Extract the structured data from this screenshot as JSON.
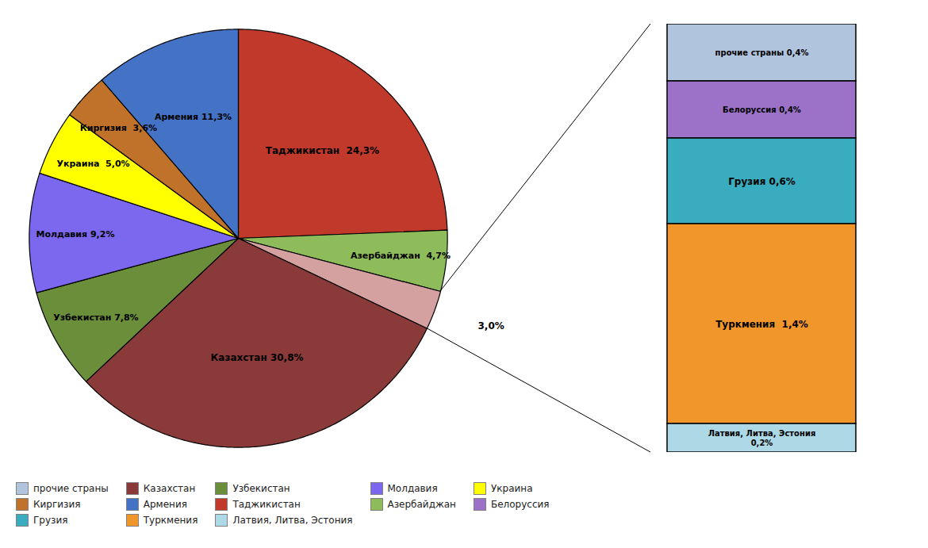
{
  "chart_data": [
    {
      "type": "pie",
      "categories": [
        "Таджикистан",
        "Азербайджан",
        null,
        "Казахстан",
        "Узбекистан",
        "Молдавия",
        "Украина",
        "Киргизия",
        "Армения"
      ],
      "values": [
        24.3,
        4.7,
        3.0,
        30.8,
        7.8,
        9.2,
        5.0,
        3.6,
        11.3
      ],
      "value_labels": [
        "Таджикистан  24,3%",
        "Азербайджан  4,7%",
        "3,0%",
        "Казахстан 30,8%",
        "Узбекистан 7,8%",
        "Молдавия 9,2%",
        "Украина  5,0%",
        "Киргизия  3,6%",
        "Армения 11,3%"
      ],
      "colors": [
        "#C0392B",
        "#8FBC5A",
        "#D4A0A0",
        "#8B3A3A",
        "#6B8E3A",
        "#7B68EE",
        "#FFFF00",
        "#C0722A",
        "#4472C4"
      ],
      "data_labels": true,
      "legend": "lower left"
    },
    {
      "type": "bar",
      "stacked": true,
      "tick_labels": false,
      "data_labels": true,
      "categories": [
        null
      ],
      "ylim": [
        0,
        3.0
      ],
      "series": [
        {
          "name": "прочие страны",
          "color": "#B0C4DE",
          "values": [
            0.4
          ],
          "value_labels": [
            "прочие страны 0,4%"
          ]
        },
        {
          "name": "Белоруссия",
          "color": "#9B72C8",
          "values": [
            0.4
          ],
          "value_labels": [
            "Белоруссия 0,4%"
          ]
        },
        {
          "name": "Грузия",
          "color": "#3AACBF",
          "values": [
            0.6
          ],
          "value_labels": [
            "Грузия 0,6%"
          ]
        },
        {
          "name": "Туркмения",
          "color": "#F0962A",
          "values": [
            1.4
          ],
          "value_labels": [
            "Туркмения  1,4%"
          ]
        },
        {
          "name": "Латвия, Литва, Эстония",
          "color": "#ADD8E6",
          "values": [
            0.2
          ],
          "value_labels": [
            "Латвия, Литва, Эстония\n0,2%"
          ]
        }
      ]
    }
  ]
}
